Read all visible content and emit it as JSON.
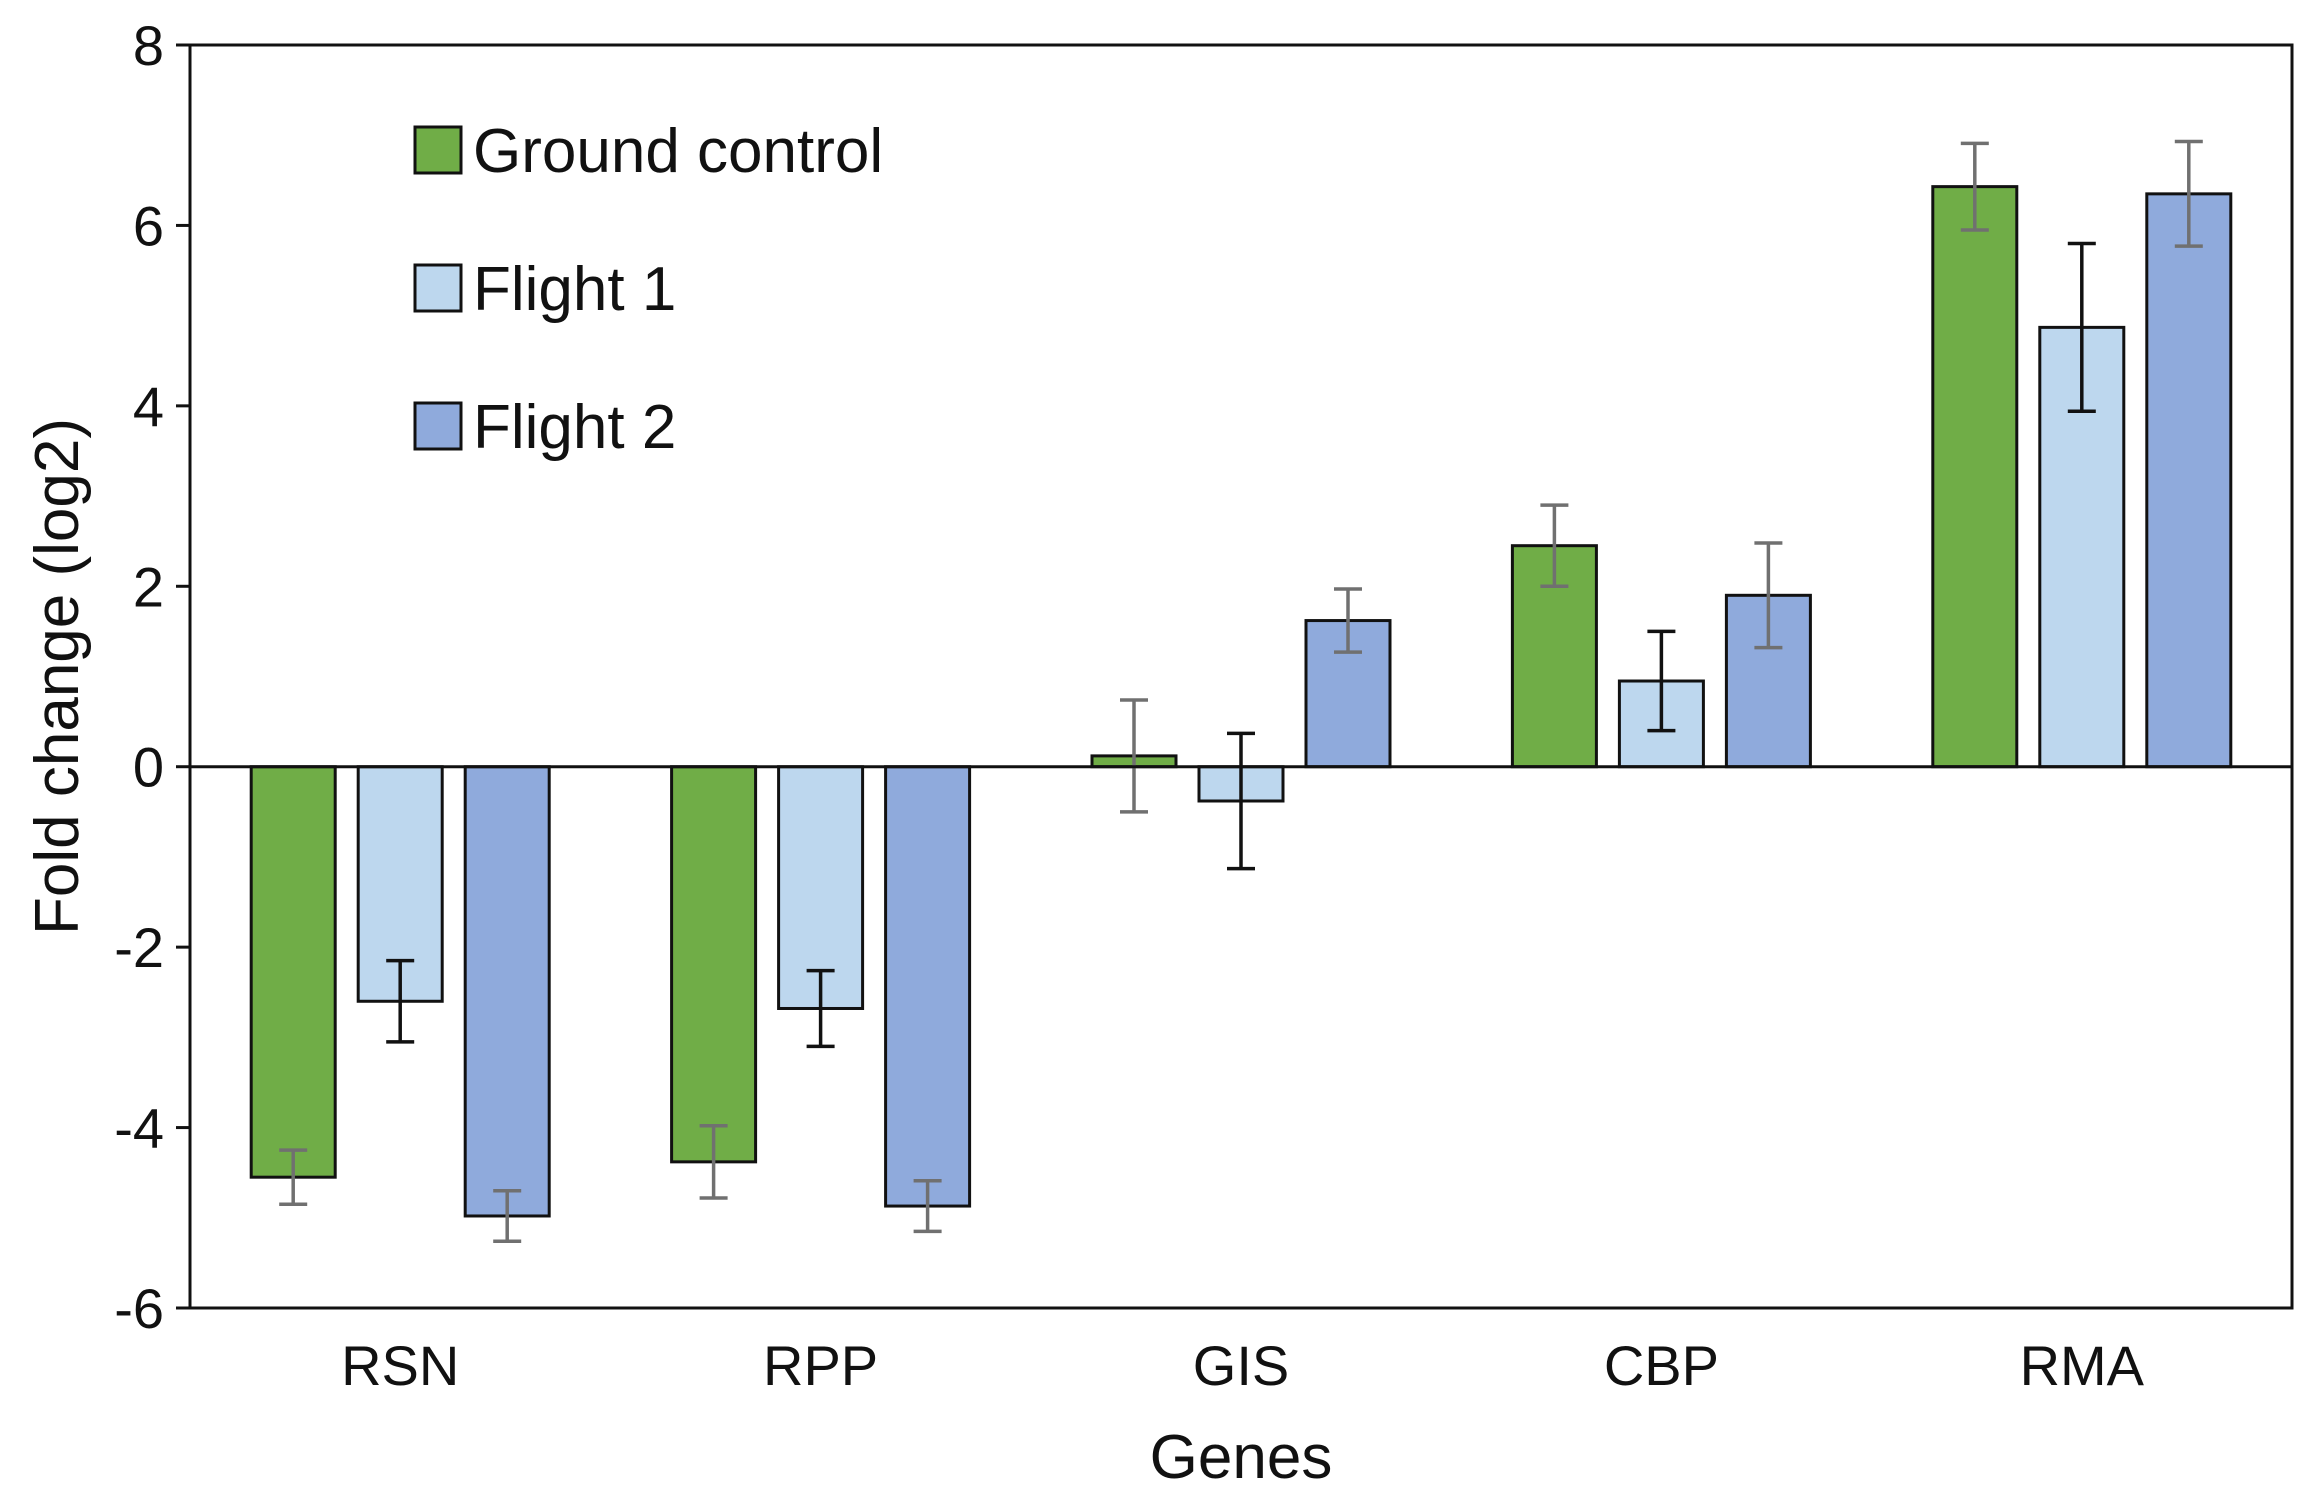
{
  "chart_data": {
    "type": "bar",
    "title": "",
    "xlabel": "Genes",
    "ylabel": "Fold change (log2)",
    "ylim": [
      -6,
      8
    ],
    "yticks": [
      8,
      6,
      4,
      2,
      0,
      -2,
      -4,
      -6
    ],
    "ytick_labels": [
      "8",
      "6",
      "4",
      "2",
      "0",
      "-2",
      "-4",
      "-6"
    ],
    "grid": false,
    "legend_position": "top-left",
    "categories": [
      "RSN",
      "RPP",
      "GIS",
      "CBP",
      "RMA"
    ],
    "series": [
      {
        "name": "Ground control",
        "color": "#70ad47",
        "error_color": "#707070",
        "values": [
          -4.55,
          -4.38,
          0.12,
          2.45,
          6.43
        ],
        "errors": [
          0.3,
          0.4,
          0.62,
          0.45,
          0.48
        ]
      },
      {
        "name": "Flight 1",
        "color": "#bdd7ee",
        "error_color": "#111111",
        "values": [
          -2.6,
          -2.68,
          -0.38,
          0.95,
          4.87
        ],
        "errors": [
          0.45,
          0.42,
          0.75,
          0.55,
          0.93
        ]
      },
      {
        "name": "Flight 2",
        "color": "#8faadc",
        "error_color": "#707070",
        "values": [
          -4.98,
          -4.87,
          1.62,
          1.9,
          6.35
        ],
        "errors": [
          0.28,
          0.28,
          0.35,
          0.58,
          0.58
        ]
      }
    ]
  }
}
